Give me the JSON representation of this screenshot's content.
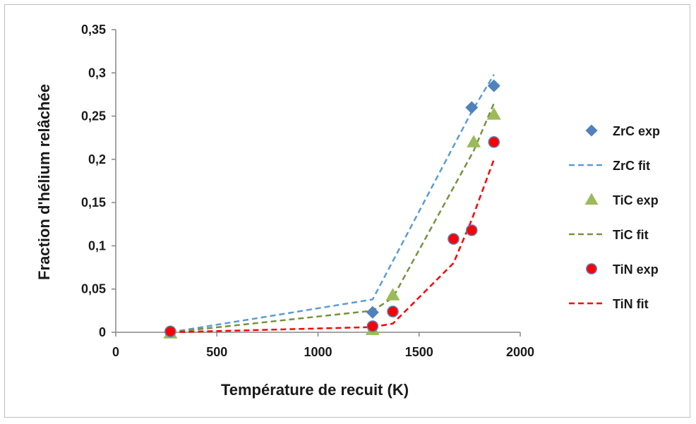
{
  "chart_data": {
    "type": "scatter",
    "xlabel": "Température de recuit (K)",
    "ylabel": "Fraction d'hélium relâchée",
    "xlim": [
      0,
      2000
    ],
    "ylim": [
      0,
      0.35
    ],
    "x_ticks": [
      0,
      500,
      1000,
      1500,
      2000
    ],
    "y_ticks": [
      0,
      0.05,
      0.1,
      0.15,
      0.2,
      0.25,
      0.3,
      0.35
    ],
    "x_tick_labels": [
      "0",
      "500",
      "1000",
      "1500",
      "2000"
    ],
    "y_tick_labels": [
      "0",
      "0,05",
      "0,1",
      "0,15",
      "0,2",
      "0,25",
      "0,3",
      "0,35"
    ],
    "grid": false,
    "legend_position": "right",
    "series": [
      {
        "name": "ZrC exp",
        "kind": "points",
        "marker": "diamond",
        "color": "#4f81bd",
        "x": [
          270,
          1270,
          1760,
          1870
        ],
        "y": [
          0.0,
          0.023,
          0.26,
          0.285
        ]
      },
      {
        "name": "ZrC fit",
        "kind": "dashed-line",
        "color": "#5b9bd5",
        "x": [
          270,
          1270,
          1760,
          1870
        ],
        "y": [
          0.0,
          0.038,
          0.255,
          0.298
        ]
      },
      {
        "name": "TiC exp",
        "kind": "points",
        "marker": "triangle",
        "color": "#9bbb59",
        "x": [
          270,
          1270,
          1370,
          1770,
          1870
        ],
        "y": [
          -0.001,
          0.003,
          0.043,
          0.22,
          0.252
        ]
      },
      {
        "name": "TiC fit",
        "kind": "dashed-line",
        "color": "#76923c",
        "x": [
          270,
          1270,
          1370,
          1770,
          1870
        ],
        "y": [
          0.0,
          0.025,
          0.04,
          0.21,
          0.265
        ]
      },
      {
        "name": "TiN exp",
        "kind": "points",
        "marker": "circle",
        "color": "#ff0000",
        "x": [
          270,
          1270,
          1370,
          1670,
          1760,
          1870
        ],
        "y": [
          0.001,
          0.007,
          0.024,
          0.108,
          0.118,
          0.22
        ]
      },
      {
        "name": "TiN fit",
        "kind": "dashed-line",
        "color": "#ff0000",
        "x": [
          270,
          1270,
          1370,
          1670,
          1760,
          1870
        ],
        "y": [
          0.0,
          0.006,
          0.01,
          0.08,
          0.13,
          0.2
        ]
      }
    ]
  }
}
